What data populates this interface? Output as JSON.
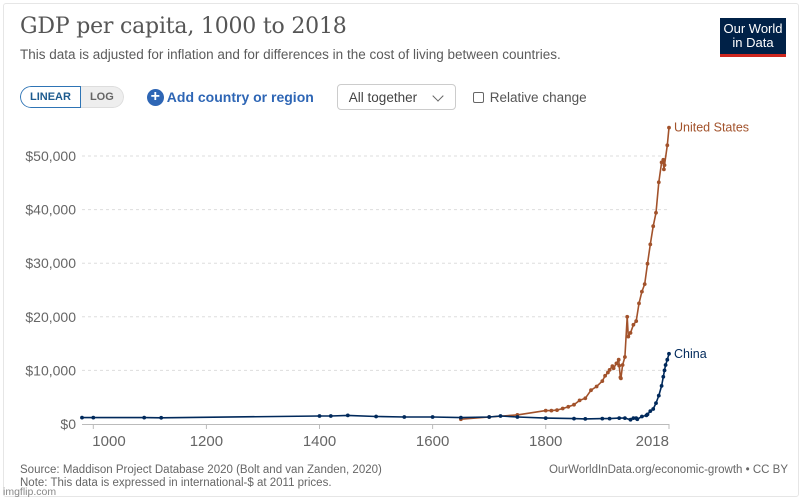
{
  "header": {
    "title": "GDP per capita, 1000 to 2018",
    "subtitle": "This data is adjusted for inflation and for differences in the cost of living between countries.",
    "logo_line1": "Our World",
    "logo_line2": "in Data"
  },
  "controls": {
    "scale_linear": "LINEAR",
    "scale_log": "LOG",
    "scale_selected": "LINEAR",
    "add_label": "Add country or region",
    "add_icon": "plus-circle-icon",
    "facet_select": "All together",
    "relative_change_label": "Relative change",
    "relative_change_checked": false
  },
  "footer": {
    "source": "Source: Maddison Project Database 2020 (Bolt and van Zanden, 2020)",
    "note": "Note: This data is expressed in international-$ at 2011 prices.",
    "url": "OurWorldInData.org/economic-growth • CC BY",
    "watermark": "imgflip.com"
  },
  "chart_data": {
    "type": "line",
    "title": "GDP per capita, 1000 to 2018",
    "xlabel": "",
    "ylabel": "",
    "xlim": [
      980,
      2018
    ],
    "ylim": [
      0,
      55000
    ],
    "x_ticks": [
      1000,
      1200,
      1400,
      1600,
      1800,
      2018
    ],
    "y_ticks": [
      0,
      10000,
      20000,
      30000,
      40000,
      50000
    ],
    "y_tick_labels": [
      "$0",
      "$10,000",
      "$20,000",
      "$30,000",
      "$40,000",
      "$50,000"
    ],
    "grid": "horizontal-dashed",
    "legend": "inline-end-labels",
    "series": [
      {
        "name": "United States",
        "color": "#a2522b",
        "points": [
          [
            1650,
            900
          ],
          [
            1700,
            1300
          ],
          [
            1750,
            1700
          ],
          [
            1800,
            2500
          ],
          [
            1810,
            2500
          ],
          [
            1820,
            2600
          ],
          [
            1830,
            2900
          ],
          [
            1840,
            3200
          ],
          [
            1850,
            3600
          ],
          [
            1860,
            4400
          ],
          [
            1870,
            4800
          ],
          [
            1880,
            6300
          ],
          [
            1890,
            7000
          ],
          [
            1900,
            8000
          ],
          [
            1905,
            9000
          ],
          [
            1910,
            9600
          ],
          [
            1913,
            10100
          ],
          [
            1918,
            10800
          ],
          [
            1920,
            10400
          ],
          [
            1925,
            11300
          ],
          [
            1929,
            12000
          ],
          [
            1930,
            10900
          ],
          [
            1932,
            8700
          ],
          [
            1933,
            8500
          ],
          [
            1936,
            11000
          ],
          [
            1940,
            12500
          ],
          [
            1944,
            20000
          ],
          [
            1946,
            16300
          ],
          [
            1950,
            17000
          ],
          [
            1955,
            18500
          ],
          [
            1960,
            19200
          ],
          [
            1965,
            22500
          ],
          [
            1970,
            24700
          ],
          [
            1975,
            26100
          ],
          [
            1980,
            29900
          ],
          [
            1985,
            33500
          ],
          [
            1990,
            36900
          ],
          [
            1995,
            39400
          ],
          [
            2000,
            45100
          ],
          [
            2005,
            48800
          ],
          [
            2008,
            49300
          ],
          [
            2009,
            47500
          ],
          [
            2010,
            48300
          ],
          [
            2015,
            52000
          ],
          [
            2018,
            55300
          ]
        ]
      },
      {
        "name": "China",
        "color": "#00295b",
        "points": [
          [
            980,
            1200
          ],
          [
            1000,
            1200
          ],
          [
            1090,
            1200
          ],
          [
            1120,
            1150
          ],
          [
            1400,
            1500
          ],
          [
            1420,
            1500
          ],
          [
            1450,
            1600
          ],
          [
            1500,
            1400
          ],
          [
            1550,
            1300
          ],
          [
            1600,
            1300
          ],
          [
            1650,
            1200
          ],
          [
            1700,
            1300
          ],
          [
            1720,
            1500
          ],
          [
            1750,
            1300
          ],
          [
            1800,
            1100
          ],
          [
            1850,
            1000
          ],
          [
            1870,
            950
          ],
          [
            1900,
            1000
          ],
          [
            1913,
            1000
          ],
          [
            1930,
            1100
          ],
          [
            1940,
            1100
          ],
          [
            1950,
            800
          ],
          [
            1955,
            1100
          ],
          [
            1960,
            1100
          ],
          [
            1962,
            900
          ],
          [
            1970,
            1400
          ],
          [
            1978,
            1600
          ],
          [
            1980,
            1800
          ],
          [
            1985,
            2400
          ],
          [
            1990,
            2800
          ],
          [
            1995,
            3900
          ],
          [
            2000,
            5300
          ],
          [
            2005,
            7100
          ],
          [
            2008,
            8800
          ],
          [
            2010,
            10000
          ],
          [
            2012,
            11000
          ],
          [
            2015,
            12000
          ],
          [
            2018,
            13100
          ]
        ]
      }
    ]
  }
}
